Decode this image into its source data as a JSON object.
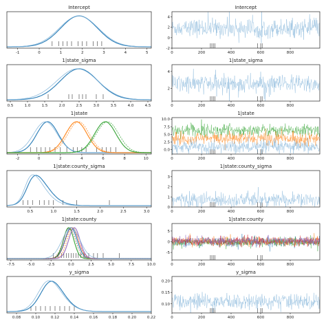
{
  "colors": {
    "blue": "#1f77b4",
    "blue_light": "#7fb2d8",
    "orange": "#ff7f0e",
    "green": "#2ca02c",
    "red": "#d62728",
    "purple": "#9467bd",
    "brown": "#8c564b"
  },
  "chart_data": [
    {
      "type": "line",
      "title": "Intercept",
      "kind": "density",
      "xlim": [
        -1.5,
        5.2
      ],
      "xticks": [
        "-1",
        "0",
        "1",
        "2",
        "3",
        "4",
        "5"
      ],
      "xtick_values": [
        -1,
        0,
        1,
        2,
        3,
        4,
        5
      ],
      "series": [
        {
          "color": "blue",
          "dist": {
            "mu": 1.85,
            "sd": 0.85,
            "skew": 0.0
          }
        },
        {
          "color": "blue_light",
          "dist": {
            "mu": 1.8,
            "sd": 0.9,
            "skew": 0.05
          }
        }
      ],
      "rug": [
        0.6,
        0.9,
        1.1,
        1.3,
        1.5,
        1.8,
        2.0,
        2.2,
        2.5,
        2.7,
        2.9
      ]
    },
    {
      "type": "line",
      "title": "Intercept",
      "kind": "trace",
      "xlim": [
        0,
        1000
      ],
      "ylim": [
        -2,
        5
      ],
      "xticks": [
        "0",
        "200",
        "400",
        "600",
        "800"
      ],
      "xtick_values": [
        0,
        200,
        400,
        600,
        800
      ],
      "yticks": [
        "-2",
        "0",
        "2",
        "4"
      ],
      "ytick_values": [
        -2,
        0,
        2,
        4
      ],
      "series": [
        {
          "color": "blue_light",
          "mean": 1.85,
          "sd": 0.85
        }
      ],
      "divergences": [
        260,
        270,
        280,
        290,
        580,
        600,
        610
      ]
    },
    {
      "type": "line",
      "title": "1|state_sigma",
      "kind": "density",
      "xlim": [
        0.4,
        4.6
      ],
      "xticks": [
        "0.5",
        "1.0",
        "1.5",
        "2.0",
        "2.5",
        "3.0",
        "3.5",
        "4.0",
        "4.5"
      ],
      "xtick_values": [
        0.5,
        1.0,
        1.5,
        2.0,
        2.5,
        3.0,
        3.5,
        4.0,
        4.5
      ],
      "series": [
        {
          "color": "blue",
          "dist": {
            "mu": 2.5,
            "sd": 0.55,
            "skew": 0.0
          }
        },
        {
          "color": "blue_light",
          "dist": {
            "mu": 2.45,
            "sd": 0.6,
            "skew": 0.0
          }
        }
      ],
      "rug": [
        1.6,
        2.2,
        2.3,
        2.5,
        2.6,
        2.7,
        3.0,
        3.2
      ]
    },
    {
      "type": "line",
      "title": "1|state_sigma",
      "kind": "trace",
      "xlim": [
        0,
        1000
      ],
      "ylim": [
        0.5,
        4.8
      ],
      "xticks": [
        "0",
        "200",
        "400",
        "600",
        "800"
      ],
      "xtick_values": [
        0,
        200,
        400,
        600,
        800
      ],
      "yticks": [
        "2",
        "4"
      ],
      "ytick_values": [
        2,
        4
      ],
      "series": [
        {
          "color": "blue_light",
          "mean": 2.5,
          "sd": 0.55
        }
      ],
      "divergences": [
        260,
        270,
        280,
        290,
        580,
        600,
        610
      ]
    },
    {
      "type": "line",
      "title": "1|state",
      "kind": "density",
      "xlim": [
        -3,
        10.5
      ],
      "xticks": [
        "-2",
        "0",
        "2",
        "4",
        "6",
        "8",
        "10"
      ],
      "xtick_values": [
        -2,
        0,
        2,
        4,
        6,
        8,
        10
      ],
      "series": [
        {
          "color": "blue",
          "dist": {
            "mu": 0.8,
            "sd": 1.0,
            "skew": 0.0
          }
        },
        {
          "color": "blue_light",
          "dist": {
            "mu": 0.6,
            "sd": 1.1,
            "skew": 0.0
          }
        },
        {
          "color": "orange",
          "dist": {
            "mu": 3.5,
            "sd": 1.0,
            "skew": 0.0
          }
        },
        {
          "color": "orange",
          "dist": {
            "mu": 3.7,
            "sd": 1.0,
            "skew": 0.0
          }
        },
        {
          "color": "green",
          "dist": {
            "mu": 6.2,
            "sd": 1.0,
            "skew": 0.0
          }
        },
        {
          "color": "green",
          "dist": {
            "mu": 6.4,
            "sd": 1.05,
            "skew": 0.0
          }
        }
      ],
      "rug": [
        -0.8,
        -0.2,
        0.2,
        0.6,
        1.0,
        1.5,
        2.0,
        2.6,
        3.2,
        3.6,
        4.0,
        4.4,
        5.4,
        5.9,
        6.3,
        6.7,
        7.2
      ]
    },
    {
      "type": "line",
      "title": "1|state",
      "kind": "trace",
      "xlim": [
        0,
        1000
      ],
      "ylim": [
        -1.5,
        10.5
      ],
      "xticks": [
        "0",
        "200",
        "400",
        "600",
        "800"
      ],
      "xtick_values": [
        0,
        200,
        400,
        600,
        800
      ],
      "yticks": [
        "0.0",
        "2.5",
        "5.0",
        "7.5",
        "10.0"
      ],
      "ytick_values": [
        0,
        2.5,
        5,
        7.5,
        10
      ],
      "series": [
        {
          "color": "green",
          "mean": 6.3,
          "sd": 1.0
        },
        {
          "color": "orange",
          "mean": 3.6,
          "sd": 1.0
        },
        {
          "color": "blue_light",
          "mean": 0.8,
          "sd": 1.0
        }
      ],
      "divergences": [
        260,
        270,
        280,
        290,
        580,
        600,
        610
      ]
    },
    {
      "type": "line",
      "title": "1|state:county_sigma",
      "kind": "density",
      "xlim": [
        0.0,
        3.1
      ],
      "xticks": [
        "0.5",
        "1.0",
        "1.5",
        "2.0",
        "2.5",
        "3.0"
      ],
      "xtick_values": [
        0.5,
        1.0,
        1.5,
        2.0,
        2.5,
        3.0
      ],
      "series": [
        {
          "color": "blue",
          "dist": {
            "mu": 0.45,
            "sd": 0.35,
            "skew": 2.2
          }
        },
        {
          "color": "blue_light",
          "dist": {
            "mu": 0.4,
            "sd": 0.33,
            "skew": 2.4
          }
        }
      ],
      "rug": [
        0.35,
        0.45,
        0.55,
        0.7,
        0.8,
        0.9,
        1.0,
        1.2,
        1.5,
        2.2
      ]
    },
    {
      "type": "line",
      "title": "1|state:county_sigma",
      "kind": "trace",
      "xlim": [
        0,
        1000
      ],
      "ylim": [
        0,
        3.6
      ],
      "xticks": [
        "0",
        "200",
        "400",
        "600",
        "800"
      ],
      "xtick_values": [
        0,
        200,
        400,
        600,
        800
      ],
      "yticks": [
        "0",
        "1",
        "2",
        "3"
      ],
      "ytick_values": [
        0,
        1,
        2,
        3
      ],
      "series": [
        {
          "color": "blue_light",
          "mean": 0.7,
          "sd": 0.35
        }
      ],
      "divergences": [
        260,
        270,
        280,
        290,
        580,
        600,
        610
      ]
    },
    {
      "type": "line",
      "title": "1|state:county",
      "kind": "density",
      "xlim": [
        -8,
        10
      ],
      "xticks": [
        "-7.5",
        "-5.0",
        "-2.5",
        "0.0",
        "2.5",
        "5.0",
        "7.5",
        "10.0"
      ],
      "xtick_values": [
        -7.5,
        -5,
        -2.5,
        0,
        2.5,
        5,
        7.5,
        10
      ],
      "series": [
        {
          "color": "blue",
          "dist": {
            "mu": 0.0,
            "sd": 0.75,
            "skew": 0.0
          }
        },
        {
          "color": "orange",
          "dist": {
            "mu": 0.2,
            "sd": 0.7,
            "skew": 0.0
          }
        },
        {
          "color": "green",
          "dist": {
            "mu": -0.3,
            "sd": 0.65,
            "skew": 0.0
          }
        },
        {
          "color": "red",
          "dist": {
            "mu": 0.1,
            "sd": 0.8,
            "skew": 0.0
          }
        },
        {
          "color": "purple",
          "dist": {
            "mu": 0.4,
            "sd": 0.7,
            "skew": 0.0
          }
        },
        {
          "color": "brown",
          "dist": {
            "mu": -0.2,
            "sd": 0.75,
            "skew": 0.0
          }
        },
        {
          "color": "blue_light",
          "dist": {
            "mu": 0.0,
            "sd": 1.1,
            "skew": 0.0
          }
        }
      ],
      "rug": [
        -2.2,
        -1.6,
        -1.2,
        -0.9,
        -0.6,
        -0.3,
        0.0,
        0.3,
        0.6,
        0.9,
        1.2,
        1.6,
        2.2,
        2.8,
        3.3,
        4.0,
        6.0
      ]
    },
    {
      "type": "line",
      "title": "1|state:county",
      "kind": "trace",
      "xlim": [
        0,
        1000
      ],
      "ylim": [
        -8.5,
        8.5
      ],
      "xticks": [
        "0",
        "200",
        "400",
        "600",
        "800"
      ],
      "xtick_values": [
        0,
        200,
        400,
        600,
        800
      ],
      "yticks": [
        "-5",
        "0",
        "5"
      ],
      "ytick_values": [
        -5,
        0,
        5
      ],
      "series": [
        {
          "color": "blue",
          "mean": 0.0,
          "sd": 1.0
        },
        {
          "color": "orange",
          "mean": 0.2,
          "sd": 1.0
        },
        {
          "color": "green",
          "mean": -0.3,
          "sd": 1.0
        },
        {
          "color": "red",
          "mean": 0.1,
          "sd": 1.0
        },
        {
          "color": "purple",
          "mean": 0.4,
          "sd": 1.0
        }
      ],
      "divergences": [
        260,
        270,
        280,
        290,
        580,
        600,
        610
      ]
    },
    {
      "type": "line",
      "title": "y_sigma",
      "kind": "density",
      "xlim": [
        0.07,
        0.22
      ],
      "xticks": [
        "0.08",
        "0.10",
        "0.12",
        "0.14",
        "0.16",
        "0.18",
        "0.20",
        "0.22"
      ],
      "xtick_values": [
        0.08,
        0.1,
        0.12,
        0.14,
        0.16,
        0.18,
        0.2,
        0.22
      ],
      "series": [
        {
          "color": "blue",
          "dist": {
            "mu": 0.108,
            "sd": 0.016,
            "skew": 1.3
          }
        },
        {
          "color": "blue_light",
          "dist": {
            "mu": 0.105,
            "sd": 0.017,
            "skew": 1.4
          }
        }
      ],
      "rug": [
        0.095,
        0.1,
        0.105,
        0.11,
        0.115,
        0.12,
        0.125,
        0.13,
        0.135,
        0.14
      ]
    },
    {
      "type": "line",
      "title": "y_sigma",
      "kind": "trace",
      "xlim": [
        0,
        1000
      ],
      "ylim": [
        0.06,
        0.22
      ],
      "xticks": [
        "0",
        "200",
        "400",
        "600",
        "800"
      ],
      "xtick_values": [
        0,
        200,
        400,
        600,
        800
      ],
      "yticks": [
        "0.10",
        "0.15",
        "0.20"
      ],
      "ytick_values": [
        0.1,
        0.15,
        0.2
      ],
      "series": [
        {
          "color": "blue_light",
          "mean": 0.11,
          "sd": 0.017
        }
      ],
      "divergences": [
        260,
        270,
        280,
        290,
        580,
        600,
        610
      ]
    }
  ]
}
